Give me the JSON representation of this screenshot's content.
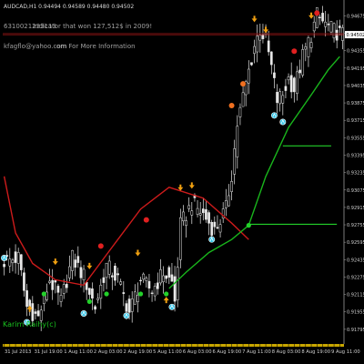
{
  "header": {
    "symbol_line": "AUDCAD,H1  0.94494 0.94589 0.94480 0.94502",
    "overlay_line1": "Indicator that won 127,512$ in 2009!",
    "overlay_line2": "om For More Information",
    "overlay_email": "kfagflo@yahoo.com",
    "overlay_number": "6310021233113"
  },
  "watermark": "Karim Raihy(c)",
  "current_price": "0.94502",
  "colors": {
    "background": "#000000",
    "candle": "#e8e8e8",
    "red_curve": "#cc1b1b",
    "green_curve": "#19b51c",
    "green_level": "#23d12a",
    "red_hline": "#b01818",
    "price_box": "#ffffff",
    "time_axis": "#c8a600",
    "axis_text": "#d0d0d0",
    "arrow_up_cyan": "#2ec4e8",
    "arrow_down_orange": "#f0a010",
    "signal_red": "#e02020",
    "signal_orange": "#f07020"
  },
  "chart_data": {
    "type": "candlestick",
    "symbol": "AUDCAD",
    "timeframe": "H1",
    "ylim": [
      0.9166,
      0.9472
    ],
    "y_ticks": [
      0.94675,
      0.94515,
      0.94355,
      0.94195,
      0.94035,
      0.93875,
      0.93715,
      0.93555,
      0.93395,
      0.93235,
      0.93075,
      0.92915,
      0.92755,
      0.92595,
      0.92435,
      0.92275,
      0.92115,
      0.91955,
      0.91795
    ],
    "x_labels": [
      "31 Jul 2013",
      "31 Jul 19:00",
      "1 Aug 11:00",
      "2 Aug 03:00",
      "2 Aug 19:00",
      "5 Aug 11:00",
      "6 Aug 03:00",
      "6 Aug 19:00",
      "7 Aug 11:00",
      "8 Aug 03:00",
      "8 Aug 19:00",
      "9 Aug 11:00"
    ],
    "num_candles": 120,
    "close_path": [
      [
        0,
        0.9242
      ],
      [
        5,
        0.9245
      ],
      [
        8,
        0.92
      ],
      [
        12,
        0.919
      ],
      [
        16,
        0.9225
      ],
      [
        20,
        0.9205
      ],
      [
        24,
        0.9245
      ],
      [
        28,
        0.9228
      ],
      [
        32,
        0.92
      ],
      [
        36,
        0.9238
      ],
      [
        40,
        0.9225
      ],
      [
        44,
        0.9195
      ],
      [
        48,
        0.9225
      ],
      [
        52,
        0.9215
      ],
      [
        56,
        0.9232
      ],
      [
        59,
        0.9222
      ],
      [
        60,
        0.9205
      ],
      [
        62,
        0.9275
      ],
      [
        66,
        0.9295
      ],
      [
        70,
        0.9285
      ],
      [
        74,
        0.927
      ],
      [
        78,
        0.929
      ],
      [
        80,
        0.9322
      ],
      [
        82,
        0.9368
      ],
      [
        85,
        0.9405
      ],
      [
        88,
        0.944
      ],
      [
        90,
        0.9455
      ],
      [
        92,
        0.9445
      ],
      [
        94,
        0.942
      ],
      [
        96,
        0.939
      ],
      [
        98,
        0.9395
      ],
      [
        100,
        0.941
      ],
      [
        102,
        0.94
      ],
      [
        105,
        0.943
      ],
      [
        108,
        0.945
      ],
      [
        110,
        0.9468
      ],
      [
        112,
        0.9462
      ],
      [
        115,
        0.9455
      ],
      [
        119,
        0.94502
      ]
    ],
    "red_curve": [
      [
        0,
        0.932
      ],
      [
        4,
        0.9268
      ],
      [
        10,
        0.924
      ],
      [
        18,
        0.9225
      ],
      [
        28,
        0.922
      ],
      [
        38,
        0.9255
      ],
      [
        48,
        0.929
      ],
      [
        58,
        0.931
      ],
      [
        70,
        0.93
      ],
      [
        80,
        0.9277
      ],
      [
        86,
        0.9262
      ]
    ],
    "green_curve": [
      [
        58,
        0.9217
      ],
      [
        64,
        0.9232
      ],
      [
        72,
        0.925
      ],
      [
        80,
        0.9262
      ],
      [
        86,
        0.9275
      ],
      [
        92,
        0.932
      ],
      [
        100,
        0.9365
      ],
      [
        108,
        0.9395
      ],
      [
        114,
        0.9418
      ],
      [
        118,
        0.943
      ]
    ],
    "green_levels": [
      {
        "x_from": 86,
        "x_to": 117,
        "y": 0.9276
      },
      {
        "x_from": 98,
        "x_to": 115,
        "y": 0.9348
      }
    ],
    "red_hline": 0.94502,
    "signals": [
      {
        "x": 0,
        "y": 0.9245,
        "kind": "up"
      },
      {
        "x": 8,
        "y": 0.9186,
        "kind": "up"
      },
      {
        "x": 9,
        "y": 0.9198,
        "kind": "updot"
      },
      {
        "x": 18,
        "y": 0.9242,
        "kind": "down"
      },
      {
        "x": 28,
        "y": 0.9194,
        "kind": "up"
      },
      {
        "x": 30,
        "y": 0.9238,
        "kind": "down"
      },
      {
        "x": 34,
        "y": 0.9256,
        "kind": "reddot"
      },
      {
        "x": 43,
        "y": 0.9192,
        "kind": "up"
      },
      {
        "x": 47,
        "y": 0.925,
        "kind": "down"
      },
      {
        "x": 50,
        "y": 0.928,
        "kind": "red"
      },
      {
        "x": 57,
        "y": 0.9206,
        "kind": "updot"
      },
      {
        "x": 59,
        "y": 0.92,
        "kind": "upcyan"
      },
      {
        "x": 62,
        "y": 0.931,
        "kind": "down"
      },
      {
        "x": 66,
        "y": 0.9312,
        "kind": "down"
      },
      {
        "x": 73,
        "y": 0.9262,
        "kind": "upcyan"
      },
      {
        "x": 80,
        "y": 0.9385,
        "kind": "orange"
      },
      {
        "x": 84,
        "y": 0.9405,
        "kind": "orange"
      },
      {
        "x": 88,
        "y": 0.9465,
        "kind": "down"
      },
      {
        "x": 92,
        "y": 0.9455,
        "kind": "down"
      },
      {
        "x": 95,
        "y": 0.9376,
        "kind": "upcyan"
      },
      {
        "x": 98,
        "y": 0.937,
        "kind": "upcyan"
      },
      {
        "x": 102,
        "y": 0.9435,
        "kind": "reddot"
      },
      {
        "x": 108,
        "y": 0.9468,
        "kind": "down"
      },
      {
        "x": 110,
        "y": 0.947,
        "kind": "red"
      }
    ],
    "green_dots": [
      [
        14,
        0.9212
      ],
      [
        30,
        0.9205
      ],
      [
        36,
        0.9212
      ],
      [
        48,
        0.9212
      ],
      [
        57,
        0.9212
      ],
      [
        86,
        0.9275
      ]
    ]
  }
}
